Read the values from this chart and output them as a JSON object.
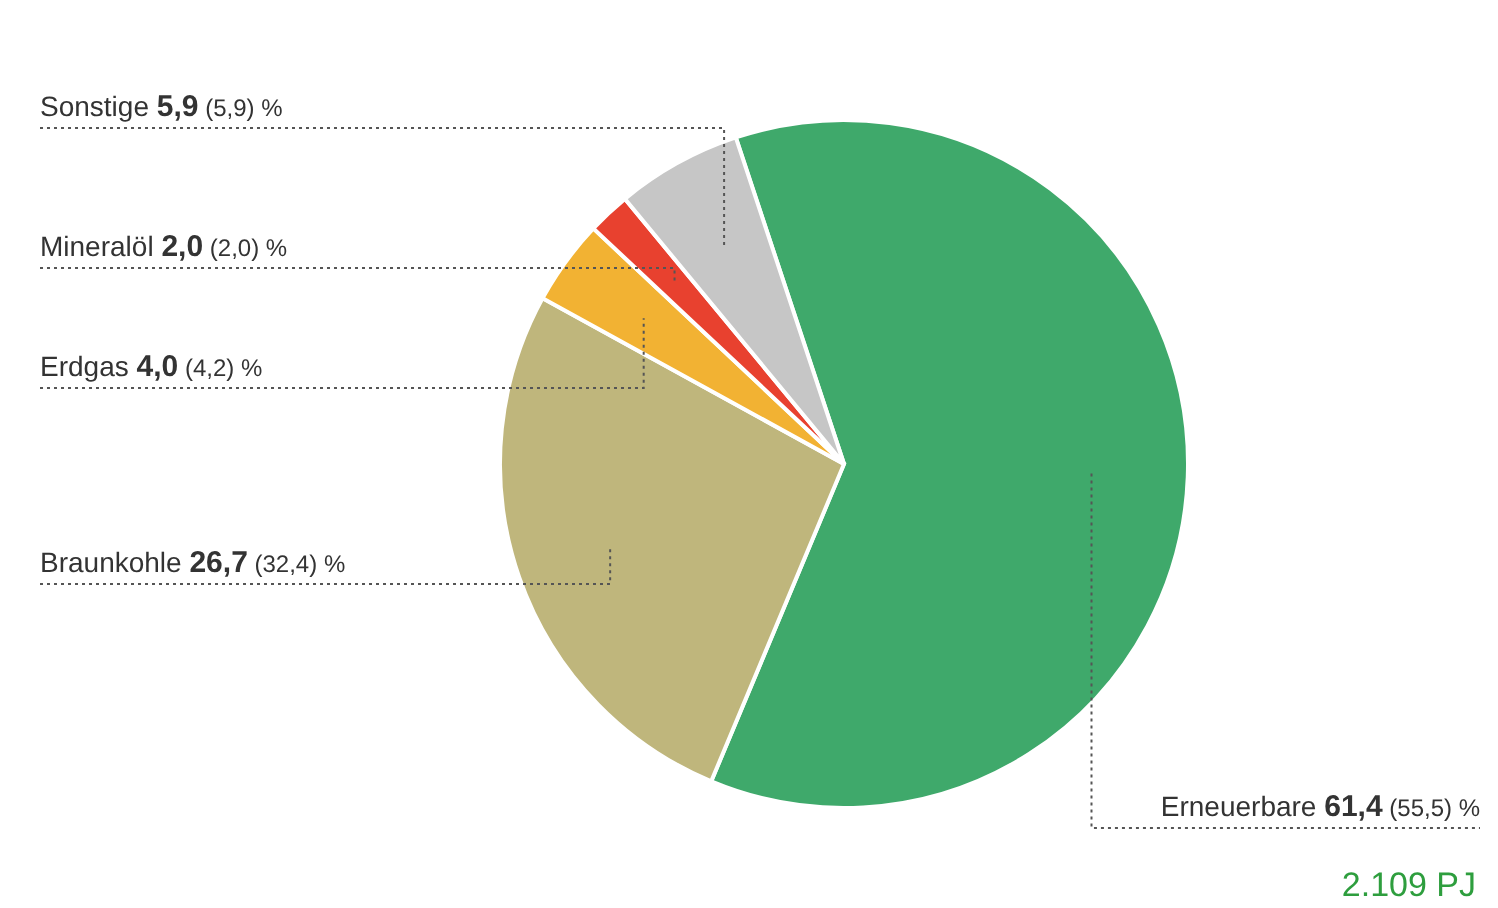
{
  "chart_data": {
    "type": "pie",
    "categories": [
      "Erneuerbare",
      "Braunkohle",
      "Erdgas",
      "Mineralöl",
      "Sonstige"
    ],
    "values": [
      61.4,
      26.7,
      4.0,
      2.0,
      5.9
    ],
    "colors": [
      "#3fa96b",
      "#bfb67c",
      "#f2b233",
      "#e8412f",
      "#c6c6c6"
    ],
    "value_labels": [
      "61,4 (55,5) %",
      "26,7 (32,4) %",
      "4,0 (4,2) %",
      "2,0 (2,0) %",
      "5,9 (5,9) %"
    ],
    "annotations": [
      "2.109 PJ"
    ],
    "legend": false
  }
}
